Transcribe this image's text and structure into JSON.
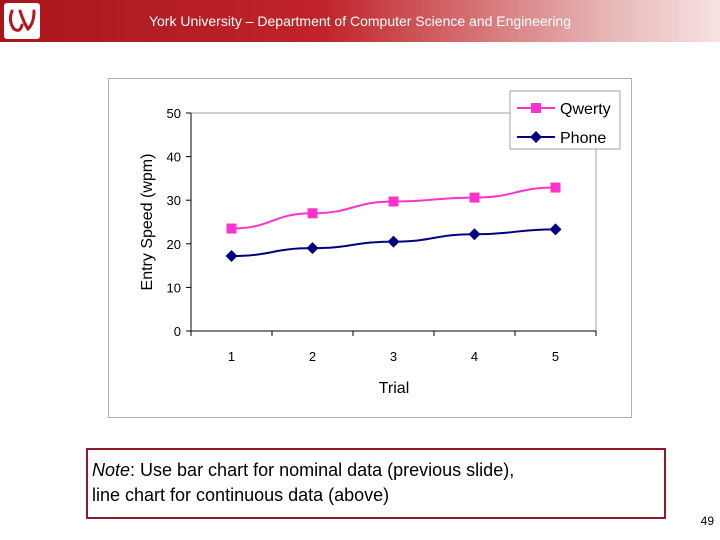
{
  "header": {
    "title": "York University – Department of Computer Science and Engineering"
  },
  "note": {
    "label": "Note",
    "line1": ": Use bar chart for nominal data (previous slide),",
    "line2": "line chart for continuous data (above)"
  },
  "page_number": "49",
  "colors": {
    "qwerty": "#ff33cc",
    "phone": "#000080",
    "header": "#b3171d",
    "note_border": "#8b1a2b"
  },
  "chart_data": {
    "type": "line",
    "x": [
      1,
      2,
      3,
      4,
      5
    ],
    "categories": [
      "1",
      "2",
      "3",
      "4",
      "5"
    ],
    "series": [
      {
        "name": "Qwerty",
        "values": [
          23.5,
          27,
          29.7,
          30.6,
          32.9
        ],
        "marker": "square",
        "color": "#ff33cc"
      },
      {
        "name": "Phone",
        "values": [
          17.2,
          19,
          20.5,
          22.2,
          23.3
        ],
        "marker": "diamond",
        "color": "#000080"
      }
    ],
    "xlabel": "Trial",
    "ylabel": "Entry Speed (wpm)",
    "ylim": [
      0,
      50
    ],
    "yticks": [
      0,
      10,
      20,
      30,
      40,
      50
    ],
    "grid": false,
    "legend": "top-right"
  }
}
